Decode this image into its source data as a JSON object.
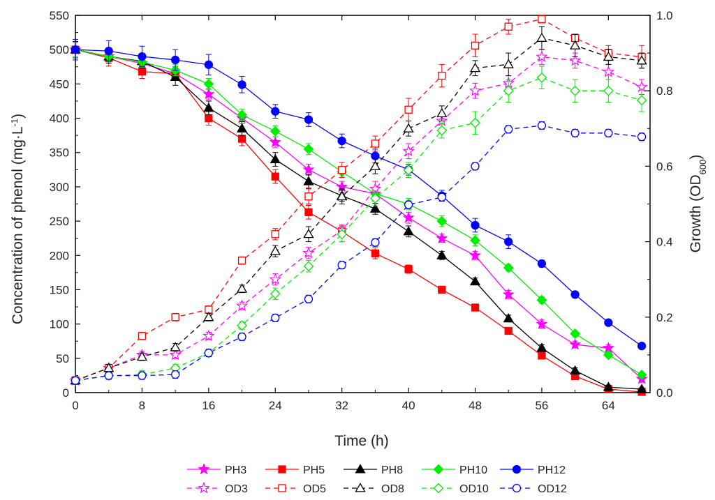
{
  "chart_data": {
    "type": "line",
    "title": "",
    "xlabel": "Time (h)",
    "ylabel": "Concentration of phenol (mg·L-1)",
    "ylabel_main": "Concentration of phenol (mg·L",
    "ylabel_sup": "-1",
    "ylabel_close": ")",
    "y2label": "Growth (OD600)",
    "y2label_main": "Growth (OD",
    "y2label_sub": "600",
    "y2label_close": ")",
    "xlim": [
      0,
      69
    ],
    "ylim": [
      0,
      550
    ],
    "y2lim": [
      0,
      1.0
    ],
    "xticks": [
      0,
      8,
      16,
      24,
      32,
      40,
      48,
      56,
      64
    ],
    "yticks": [
      0,
      50,
      100,
      150,
      200,
      250,
      300,
      350,
      400,
      450,
      500,
      550
    ],
    "y2ticks": [
      "0.0",
      "0.2",
      "0.4",
      "0.6",
      "0.8",
      "1.0"
    ],
    "y2tick_values": [
      0,
      0.2,
      0.4,
      0.6,
      0.8,
      1.0
    ],
    "grid": false,
    "legend_position": "bottom",
    "x": [
      0,
      4,
      8,
      12,
      16,
      20,
      24,
      28,
      32,
      36,
      40,
      44,
      48,
      52,
      56,
      60,
      64,
      68
    ],
    "series": [
      {
        "name": "PH3",
        "axis": "left",
        "color": "#ff00ff",
        "marker": "star",
        "filled": true,
        "dashed": false,
        "values": [
          500,
          490,
          480,
          465,
          435,
          400,
          365,
          325,
          300,
          290,
          255,
          225,
          200,
          143,
          100,
          70,
          65,
          20
        ],
        "errors": [
          10,
          8,
          8,
          8,
          8,
          8,
          8,
          8,
          8,
          8,
          8,
          6,
          6,
          6,
          6,
          5,
          5,
          5
        ]
      },
      {
        "name": "PH5",
        "axis": "left",
        "color": "#ff0000",
        "marker": "square",
        "filled": true,
        "dashed": false,
        "values": [
          500,
          488,
          468,
          465,
          400,
          370,
          315,
          263,
          235,
          203,
          180,
          150,
          124,
          90,
          54,
          24,
          5,
          1
        ],
        "errors": [
          10,
          12,
          10,
          10,
          10,
          10,
          10,
          10,
          8,
          8,
          6,
          5,
          4,
          4,
          4,
          3,
          2,
          1
        ]
      },
      {
        "name": "PH8",
        "axis": "left",
        "color": "#000000",
        "marker": "triangle",
        "filled": true,
        "dashed": false,
        "values": [
          500,
          490,
          483,
          460,
          415,
          385,
          340,
          308,
          287,
          268,
          235,
          200,
          162,
          108,
          65,
          32,
          8,
          5
        ],
        "errors": [
          12,
          10,
          10,
          12,
          10,
          10,
          10,
          10,
          8,
          8,
          8,
          6,
          5,
          5,
          5,
          4,
          3,
          2
        ]
      },
      {
        "name": "PH10",
        "axis": "left",
        "color": "#00ee00",
        "marker": "diamond",
        "filled": true,
        "dashed": false,
        "values": [
          500,
          490,
          482,
          470,
          450,
          405,
          381,
          355,
          322,
          290,
          275,
          250,
          222,
          182,
          135,
          86,
          55,
          26
        ],
        "errors": [
          10,
          8,
          8,
          8,
          8,
          8,
          8,
          8,
          8,
          8,
          8,
          8,
          8,
          5,
          5,
          4,
          3,
          3
        ]
      },
      {
        "name": "PH12",
        "axis": "left",
        "color": "#0000ff",
        "marker": "circle",
        "filled": true,
        "dashed": false,
        "values": [
          500,
          498,
          490,
          485,
          478,
          449,
          410,
          398,
          367,
          345,
          325,
          287,
          244,
          220,
          188,
          143,
          102,
          68
        ],
        "errors": [
          15,
          15,
          15,
          15,
          15,
          12,
          10,
          10,
          10,
          10,
          8,
          8,
          10,
          10,
          5,
          3,
          3,
          3
        ]
      },
      {
        "name": "OD3",
        "axis": "right",
        "color": "#ff00ff",
        "marker": "star",
        "filled": false,
        "dashed": true,
        "values": [
          0.032,
          0.065,
          0.1,
          0.1,
          0.15,
          0.23,
          0.3,
          0.37,
          0.43,
          0.54,
          0.64,
          0.72,
          0.8,
          0.82,
          0.89,
          0.88,
          0.85,
          0.81
        ],
        "errors": [
          0.01,
          0.01,
          0.01,
          0.01,
          0.01,
          0.01,
          0.015,
          0.015,
          0.015,
          0.02,
          0.02,
          0.02,
          0.02,
          0.02,
          0.02,
          0.02,
          0.02,
          0.02
        ]
      },
      {
        "name": "OD5",
        "axis": "right",
        "color": "#ff0000",
        "marker": "square",
        "filled": false,
        "dashed": true,
        "values": [
          0.032,
          0.065,
          0.15,
          0.2,
          0.22,
          0.35,
          0.42,
          0.52,
          0.59,
          0.66,
          0.75,
          0.84,
          0.92,
          0.97,
          0.99,
          0.94,
          0.9,
          0.89
        ],
        "errors": [
          0.01,
          0.01,
          0.01,
          0.01,
          0.01,
          0.01,
          0.015,
          0.02,
          0.02,
          0.02,
          0.03,
          0.03,
          0.03,
          0.02,
          0.01,
          0.01,
          0.02,
          0.03
        ]
      },
      {
        "name": "OD8",
        "axis": "right",
        "color": "#000000",
        "marker": "triangle",
        "filled": false,
        "dashed": true,
        "values": [
          0.032,
          0.065,
          0.095,
          0.12,
          0.2,
          0.275,
          0.375,
          0.42,
          0.52,
          0.6,
          0.7,
          0.74,
          0.86,
          0.87,
          0.94,
          0.92,
          0.89,
          0.88
        ],
        "errors": [
          0.01,
          0.01,
          0.01,
          0.01,
          0.01,
          0.01,
          0.015,
          0.02,
          0.02,
          0.02,
          0.02,
          0.02,
          0.02,
          0.03,
          0.03,
          0.03,
          0.02,
          0.02
        ]
      },
      {
        "name": "OD10",
        "axis": "right",
        "color": "#00ee00",
        "marker": "diamond",
        "filled": false,
        "dashed": true,
        "values": [
          0.032,
          0.045,
          0.048,
          0.065,
          0.105,
          0.178,
          0.262,
          0.335,
          0.42,
          0.515,
          0.59,
          0.695,
          0.715,
          0.8,
          0.835,
          0.8,
          0.8,
          0.775
        ],
        "errors": [
          0.01,
          0.01,
          0.01,
          0.01,
          0.01,
          0.01,
          0.015,
          0.015,
          0.02,
          0.02,
          0.02,
          0.02,
          0.03,
          0.03,
          0.03,
          0.03,
          0.03,
          0.03
        ]
      },
      {
        "name": "OD12",
        "axis": "right",
        "color": "#0000ff",
        "marker": "circle",
        "filled": false,
        "dashed": true,
        "values": [
          0.032,
          0.045,
          0.045,
          0.048,
          0.105,
          0.148,
          0.198,
          0.248,
          0.338,
          0.398,
          0.498,
          0.518,
          0.6,
          0.698,
          0.708,
          0.688,
          0.688,
          0.678
        ],
        "errors": [
          0.01,
          0.01,
          0.01,
          0.01,
          0.01,
          0.01,
          0.01,
          0.01,
          0.01,
          0.01,
          0.01,
          0.01,
          0.01,
          0.01,
          0.01,
          0.01,
          0.01,
          0.01
        ]
      }
    ],
    "legend": {
      "row1": [
        "PH3",
        "PH5",
        "PH8",
        "PH10",
        "PH12"
      ],
      "row2": [
        "OD3",
        "OD5",
        "OD8",
        "OD10",
        "OD12"
      ]
    }
  }
}
